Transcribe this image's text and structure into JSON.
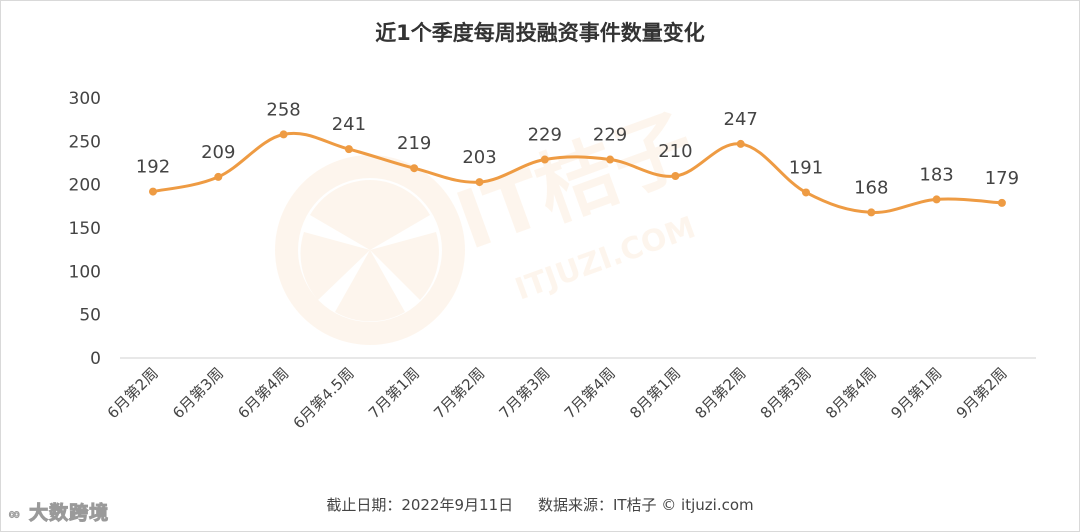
{
  "chart_data": {
    "type": "line",
    "title": "近1个季度每周投融资事件数量变化",
    "categories": [
      "6月第2周",
      "6月第3周",
      "6月第4周",
      "6月第4.5周",
      "7月第1周",
      "7月第2周",
      "7月第3周",
      "7月第4周",
      "8月第1周",
      "8月第2周",
      "8月第3周",
      "8月第4周",
      "9月第1周",
      "9月第2周"
    ],
    "values": [
      192,
      209,
      258,
      241,
      219,
      203,
      229,
      229,
      210,
      247,
      191,
      168,
      183,
      179
    ],
    "y_ticks": [
      "300",
      "250",
      "200",
      "150",
      "100",
      "50",
      "0"
    ],
    "ylim": [
      0,
      300
    ],
    "xlabel": "",
    "ylabel": "",
    "grid": false,
    "line_color": "#EE9B43"
  },
  "footer": {
    "date_text": "截止日期：2022年9月11日",
    "source_text": "数据来源：IT桔子 © itjuzi.com"
  },
  "watermark": {
    "logo_text": "IT桔子",
    "url_text": "ITJUZI.COM"
  },
  "brand": {
    "text": "大数跨境"
  }
}
